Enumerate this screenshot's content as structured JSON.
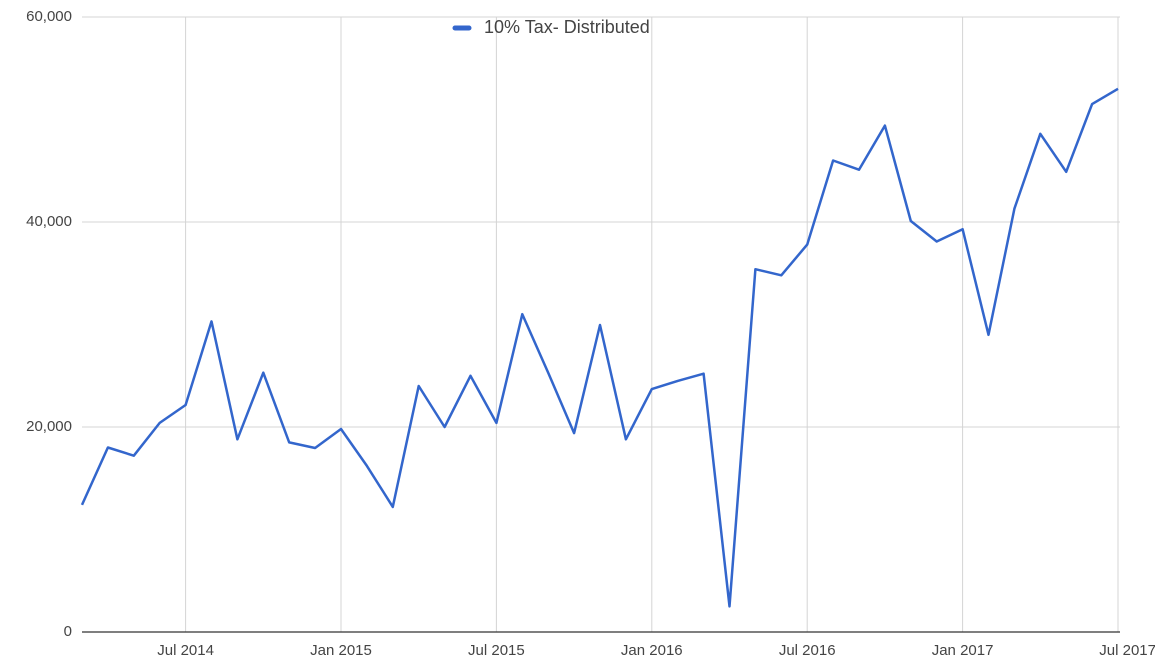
{
  "chart_data": {
    "type": "line",
    "x": [
      "2014-03",
      "2014-04",
      "2014-05",
      "2014-06",
      "2014-07",
      "2014-08",
      "2014-09",
      "2014-10",
      "2014-11",
      "2014-12",
      "2015-01",
      "2015-02",
      "2015-03",
      "2015-04",
      "2015-05",
      "2015-06",
      "2015-07",
      "2015-08",
      "2015-09",
      "2015-10",
      "2015-11",
      "2015-12",
      "2016-01",
      "2016-02",
      "2016-03",
      "2016-04",
      "2016-05",
      "2016-06",
      "2016-07",
      "2016-08",
      "2016-09",
      "2016-10",
      "2016-11",
      "2016-12",
      "2017-01",
      "2017-02",
      "2017-03",
      "2017-04",
      "2017-05",
      "2017-06",
      "2017-07"
    ],
    "series": [
      {
        "name": "10% Tax- Distributed",
        "color": "#3366cc",
        "values": [
          12400,
          18000,
          17200,
          20400,
          22150,
          30300,
          18800,
          25300,
          18500,
          17950,
          19800,
          16200,
          12200,
          24000,
          20000,
          25000,
          20400,
          31000,
          25300,
          19400,
          29950,
          18800,
          23700,
          24500,
          25200,
          2500,
          35400,
          34800,
          37800,
          46000,
          45100,
          49400,
          40100,
          38100,
          39300,
          29000,
          41300,
          48600,
          44900,
          51500,
          53000
        ]
      }
    ],
    "xlim": [
      "2014-03",
      "2017-07"
    ],
    "xticks": [
      {
        "value": "2014-07",
        "label": "Jul 2014"
      },
      {
        "value": "2015-01",
        "label": "Jan 2015"
      },
      {
        "value": "2015-07",
        "label": "Jul 2015"
      },
      {
        "value": "2016-01",
        "label": "Jan 2016"
      },
      {
        "value": "2016-07",
        "label": "Jul 2016"
      },
      {
        "value": "2017-01",
        "label": "Jan 2017"
      },
      {
        "value": "2017-07",
        "label": "Jul 2017"
      }
    ],
    "ylim": [
      0,
      60000
    ],
    "yticks": [
      0,
      {
        "value": 20000,
        "label": "20,000"
      },
      {
        "value": 40000,
        "label": "40,000"
      },
      {
        "value": 60000,
        "label": "60,000"
      }
    ],
    "grid": true,
    "legend": "top"
  }
}
